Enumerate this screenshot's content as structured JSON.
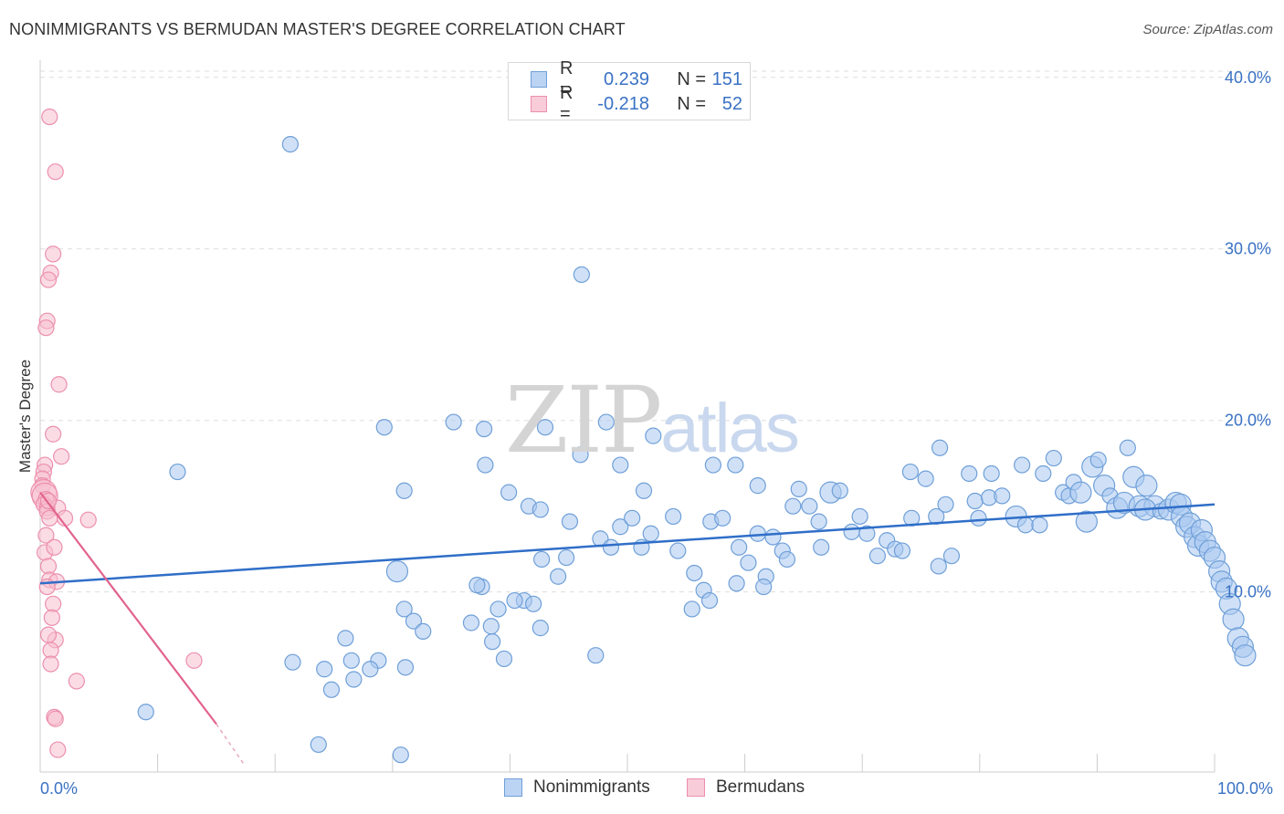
{
  "title": "NONIMMIGRANTS VS BERMUDAN MASTER'S DEGREE CORRELATION CHART",
  "source": "Source: ZipAtlas.com",
  "watermark": {
    "zip": "ZIP",
    "atlas": "atlas"
  },
  "legend": {
    "rows": [
      {
        "label": "R =",
        "r_value": "0.239",
        "n_label": "N =",
        "n_value": "151"
      },
      {
        "label": "R =",
        "r_value": "-0.218",
        "n_label": "N =",
        "n_value": "52"
      }
    ]
  },
  "bottom_legend": {
    "series1": "Nonimmigrants",
    "series2": "Bermudans"
  },
  "colors": {
    "blue_fill": "#a9c8f0",
    "blue_stroke": "#6f9fd8",
    "blue_line": "#2f6ec8",
    "pink_fill": "#f7bfd0",
    "pink_stroke": "#ec8fae",
    "pink_line": "#e2628e",
    "axis_text": "#3a72c4",
    "grid": "#dddddd"
  },
  "chart_data": {
    "type": "scatter",
    "title": "NONIMMIGRANTS VS BERMUDAN MASTER'S DEGREE CORRELATION CHART",
    "xlabel": "",
    "ylabel": "Master's Degree",
    "xlim": [
      0,
      100
    ],
    "ylim": [
      -0.5,
      41
    ],
    "x_tick_labels": [
      "0.0%",
      "100.0%"
    ],
    "y_ticks": [
      10,
      20,
      30,
      40
    ],
    "y_tick_labels": [
      "10.0%",
      "20.0%",
      "30.0%",
      "40.0%"
    ],
    "series": [
      {
        "name": "Nonimmigrants",
        "trend": {
          "x": [
            0,
            100
          ],
          "y": [
            10.5,
            15.1
          ]
        },
        "points": [
          [
            21.3,
            36.1
          ],
          [
            46.1,
            28.5
          ],
          [
            11.7,
            17.0
          ],
          [
            29.3,
            19.6
          ],
          [
            35.2,
            19.9
          ],
          [
            37.8,
            19.5
          ],
          [
            43.0,
            19.6
          ],
          [
            48.2,
            19.9
          ],
          [
            52.2,
            19.1
          ],
          [
            46.0,
            18.0
          ],
          [
            37.9,
            17.4
          ],
          [
            49.4,
            17.4
          ],
          [
            57.3,
            17.4
          ],
          [
            59.2,
            17.4
          ],
          [
            61.1,
            16.2
          ],
          [
            31.0,
            15.9
          ],
          [
            39.9,
            15.8
          ],
          [
            51.4,
            15.9
          ],
          [
            41.6,
            15.0
          ],
          [
            42.6,
            14.8
          ],
          [
            45.1,
            14.1
          ],
          [
            47.7,
            13.1
          ],
          [
            49.4,
            13.8
          ],
          [
            50.4,
            14.3
          ],
          [
            52.0,
            13.4
          ],
          [
            53.9,
            14.4
          ],
          [
            57.1,
            14.1
          ],
          [
            58.1,
            14.3
          ],
          [
            59.5,
            12.6
          ],
          [
            61.1,
            13.4
          ],
          [
            62.4,
            13.2
          ],
          [
            64.1,
            15.0
          ],
          [
            65.5,
            15.0
          ],
          [
            66.3,
            14.1
          ],
          [
            64.6,
            16.0
          ],
          [
            67.3,
            15.8
          ],
          [
            68.1,
            15.9
          ],
          [
            63.2,
            12.4
          ],
          [
            63.6,
            11.9
          ],
          [
            66.5,
            12.6
          ],
          [
            69.1,
            13.5
          ],
          [
            69.8,
            14.4
          ],
          [
            70.4,
            13.4
          ],
          [
            71.3,
            12.1
          ],
          [
            72.1,
            13.0
          ],
          [
            72.8,
            12.5
          ],
          [
            73.4,
            12.4
          ],
          [
            74.2,
            14.3
          ],
          [
            75.4,
            16.6
          ],
          [
            76.3,
            14.4
          ],
          [
            77.1,
            15.1
          ],
          [
            76.5,
            11.5
          ],
          [
            77.6,
            12.1
          ],
          [
            79.9,
            14.3
          ],
          [
            74.1,
            17.0
          ],
          [
            76.6,
            18.4
          ],
          [
            79.1,
            16.9
          ],
          [
            81.0,
            16.9
          ],
          [
            79.6,
            15.3
          ],
          [
            80.8,
            15.5
          ],
          [
            81.9,
            15.6
          ],
          [
            83.1,
            14.4
          ],
          [
            83.9,
            13.9
          ],
          [
            85.1,
            13.9
          ],
          [
            83.6,
            17.4
          ],
          [
            85.4,
            16.9
          ],
          [
            86.3,
            17.8
          ],
          [
            87.1,
            15.8
          ],
          [
            87.6,
            15.6
          ],
          [
            88.0,
            16.4
          ],
          [
            88.6,
            15.8
          ],
          [
            89.1,
            14.1
          ],
          [
            89.6,
            17.3
          ],
          [
            90.1,
            17.7
          ],
          [
            90.6,
            16.2
          ],
          [
            91.1,
            15.6
          ],
          [
            91.7,
            14.9
          ],
          [
            92.3,
            15.2
          ],
          [
            92.6,
            18.4
          ],
          [
            93.1,
            16.7
          ],
          [
            93.6,
            15.0
          ],
          [
            94.2,
            16.2
          ],
          [
            94.9,
            15.0
          ],
          [
            94.1,
            14.8
          ],
          [
            95.4,
            14.7
          ],
          [
            96.1,
            14.8
          ],
          [
            96.7,
            15.2
          ],
          [
            97.1,
            15.1
          ],
          [
            97.2,
            14.4
          ],
          [
            97.6,
            13.8
          ],
          [
            97.9,
            14.0
          ],
          [
            98.3,
            13.2
          ],
          [
            98.6,
            12.7
          ],
          [
            98.9,
            13.6
          ],
          [
            99.2,
            12.9
          ],
          [
            99.6,
            12.4
          ],
          [
            100.0,
            12.0
          ],
          [
            100.4,
            11.2
          ],
          [
            100.6,
            10.6
          ],
          [
            101.0,
            10.2
          ],
          [
            101.3,
            9.3
          ],
          [
            101.6,
            8.4
          ],
          [
            102.0,
            7.3
          ],
          [
            102.4,
            6.8
          ],
          [
            102.6,
            6.3
          ],
          [
            30.4,
            11.2
          ],
          [
            37.6,
            10.3
          ],
          [
            41.2,
            9.5
          ],
          [
            42.7,
            11.9
          ],
          [
            44.1,
            10.9
          ],
          [
            44.8,
            12.0
          ],
          [
            48.6,
            12.6
          ],
          [
            51.2,
            12.6
          ],
          [
            54.3,
            12.4
          ],
          [
            55.7,
            11.1
          ],
          [
            56.5,
            10.1
          ],
          [
            59.3,
            10.5
          ],
          [
            60.3,
            11.7
          ],
          [
            61.8,
            10.9
          ],
          [
            61.6,
            10.3
          ],
          [
            37.2,
            10.4
          ],
          [
            39.0,
            9.0
          ],
          [
            40.4,
            9.5
          ],
          [
            42.0,
            9.3
          ],
          [
            38.4,
            8.0
          ],
          [
            42.6,
            7.9
          ],
          [
            47.3,
            6.3
          ],
          [
            55.5,
            9.0
          ],
          [
            57.0,
            9.5
          ],
          [
            31.0,
            9.0
          ],
          [
            31.8,
            8.3
          ],
          [
            36.7,
            8.2
          ],
          [
            39.5,
            6.1
          ],
          [
            38.5,
            7.1
          ],
          [
            32.6,
            7.7
          ],
          [
            31.1,
            5.6
          ],
          [
            28.8,
            6.0
          ],
          [
            28.1,
            5.5
          ],
          [
            26.0,
            7.3
          ],
          [
            26.5,
            6.0
          ],
          [
            26.7,
            4.9
          ],
          [
            24.8,
            4.3
          ],
          [
            24.2,
            5.5
          ],
          [
            21.5,
            5.9
          ],
          [
            30.7,
            0.5
          ],
          [
            23.7,
            1.1
          ],
          [
            9.0,
            3.0
          ]
        ],
        "sizes": [
          1,
          1,
          1,
          1,
          1,
          1,
          1,
          1,
          1,
          1,
          1,
          1,
          1,
          1,
          1,
          1,
          1,
          1,
          1,
          1,
          1,
          1,
          1,
          1,
          1,
          1,
          1,
          1,
          1,
          1,
          1,
          1,
          1,
          1,
          1,
          2,
          1,
          1,
          1,
          1,
          1,
          1,
          1,
          1,
          1,
          1,
          1,
          1,
          1,
          1,
          1,
          1,
          1,
          1,
          1,
          1,
          1,
          1,
          1,
          1,
          1,
          2,
          1,
          1,
          1,
          1,
          1,
          1,
          1,
          1,
          2,
          2,
          2,
          1,
          2,
          1,
          2,
          2,
          1,
          2,
          2,
          2,
          2,
          2,
          1,
          2,
          2,
          2,
          2,
          2,
          2,
          2,
          2,
          2,
          2,
          2,
          2,
          2,
          2,
          2,
          2,
          2,
          2,
          2,
          2,
          2,
          1,
          1,
          1,
          1,
          1,
          1,
          1,
          1,
          1,
          1,
          1,
          1,
          1,
          1,
          1,
          1,
          1,
          1,
          1,
          1,
          1,
          1,
          1,
          1,
          1,
          1,
          1,
          1,
          1,
          1,
          1,
          1,
          1,
          1,
          1,
          1,
          1,
          1,
          1,
          1,
          1,
          1,
          1,
          1,
          1
        ]
      },
      {
        "name": "Bermudans",
        "trend": {
          "x": [
            0,
            15.0
          ],
          "y": [
            15.8,
            2.3
          ]
        },
        "trend_dashed": {
          "x": [
            15.0,
            17.3
          ],
          "y": [
            2.3,
            0.0
          ]
        },
        "points": [
          [
            0.8,
            37.7
          ],
          [
            1.3,
            34.5
          ],
          [
            1.1,
            29.7
          ],
          [
            0.9,
            28.6
          ],
          [
            0.7,
            28.2
          ],
          [
            0.6,
            25.8
          ],
          [
            0.5,
            25.4
          ],
          [
            1.6,
            22.1
          ],
          [
            1.1,
            19.2
          ],
          [
            1.8,
            17.9
          ],
          [
            0.4,
            17.4
          ],
          [
            0.3,
            17.0
          ],
          [
            0.2,
            16.6
          ],
          [
            0.2,
            16.2
          ],
          [
            0.3,
            15.8
          ],
          [
            0.4,
            15.6
          ],
          [
            0.5,
            15.4
          ],
          [
            0.3,
            15.1
          ],
          [
            0.6,
            14.9
          ],
          [
            1.5,
            14.9
          ],
          [
            0.6,
            14.7
          ],
          [
            0.8,
            14.3
          ],
          [
            0.7,
            15.3
          ],
          [
            2.1,
            14.3
          ],
          [
            4.1,
            14.2
          ],
          [
            0.5,
            13.3
          ],
          [
            0.4,
            12.3
          ],
          [
            1.2,
            12.6
          ],
          [
            0.7,
            11.5
          ],
          [
            0.8,
            10.7
          ],
          [
            1.4,
            10.6
          ],
          [
            0.6,
            10.3
          ],
          [
            1.1,
            9.3
          ],
          [
            1.0,
            8.5
          ],
          [
            1.3,
            7.2
          ],
          [
            0.7,
            7.5
          ],
          [
            0.9,
            6.6
          ],
          [
            0.9,
            5.8
          ],
          [
            3.1,
            4.8
          ],
          [
            13.1,
            6.0
          ],
          [
            1.2,
            2.7
          ],
          [
            1.3,
            2.6
          ],
          [
            1.5,
            0.8
          ]
        ],
        "sizes": [
          1,
          1,
          1,
          1,
          1,
          1,
          1,
          1,
          1,
          1,
          1,
          1,
          1,
          1,
          3,
          3,
          1,
          1,
          1,
          1,
          1,
          1,
          1,
          1,
          1,
          1,
          1,
          1,
          1,
          1,
          1,
          1,
          1,
          1,
          1,
          1,
          1,
          1,
          1,
          1,
          1,
          1,
          1
        ]
      }
    ]
  }
}
